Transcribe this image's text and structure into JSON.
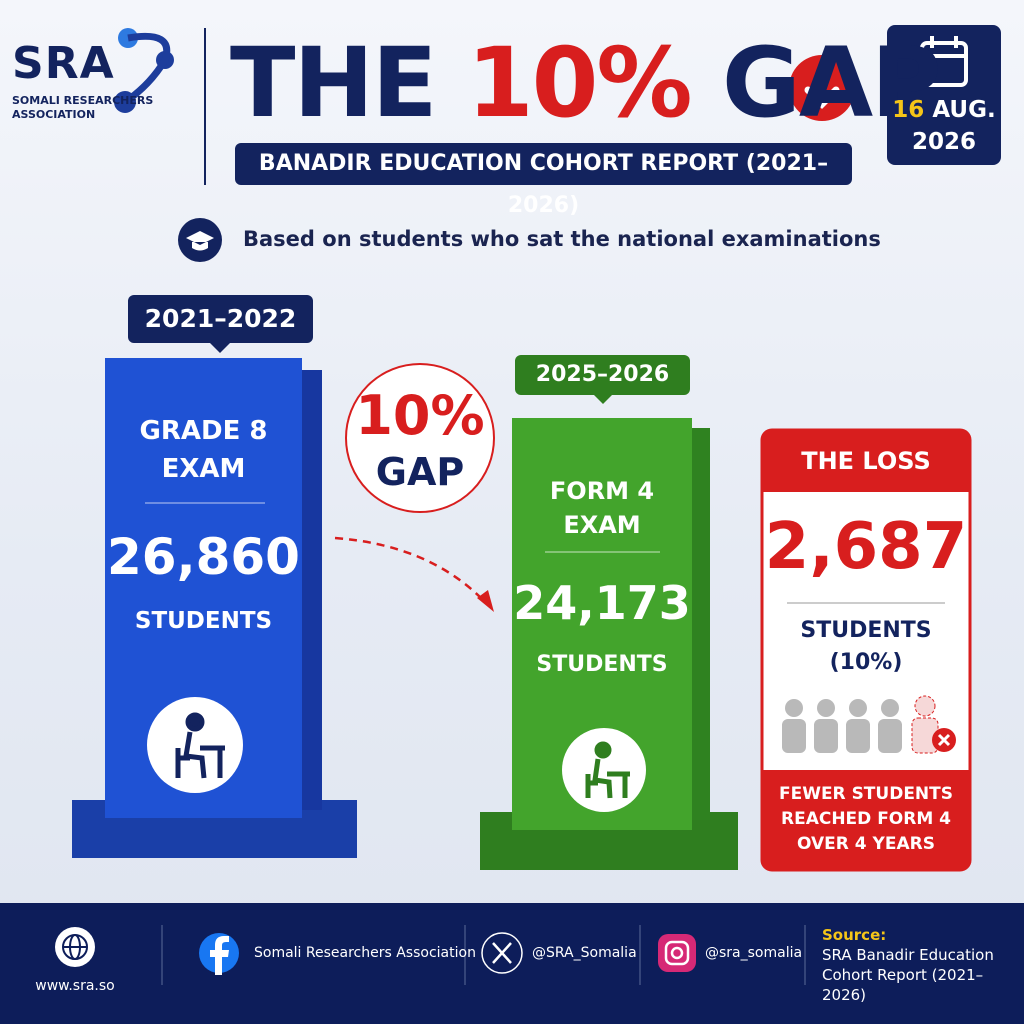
{
  "header": {
    "logo": {
      "mark": "SRA",
      "name_lines": [
        "SOMALI RESEARCHERS",
        "ASSOCIATION"
      ]
    },
    "title": {
      "before": "THE",
      "highlight": "10%",
      "after": "GAP"
    },
    "subtitle": "BANADIR EDUCATION COHORT REPORT (2021–2026)",
    "date": {
      "day": "16",
      "month": "AUG.",
      "year": "2026"
    }
  },
  "note": "Based on students who sat the national examinations",
  "start": {
    "period": "2021–2022",
    "exam_lines": [
      "GRADE 8",
      "EXAM"
    ],
    "count": "26,860",
    "unit": "STUDENTS"
  },
  "gap": {
    "percent": "10%",
    "label": "GAP"
  },
  "end": {
    "period": "2025–2026",
    "exam_lines": [
      "FORM 4",
      "EXAM"
    ],
    "count": "24,173",
    "unit": "STUDENTS"
  },
  "loss": {
    "title": "THE LOSS",
    "count": "2,687",
    "unit": "STUDENTS",
    "share": "(10%)",
    "caption_lines": [
      "FEWER STUDENTS",
      "REACHED FORM 4",
      "OVER 4 YEARS"
    ]
  },
  "footer": {
    "website": "www.sra.so",
    "facebook": "Somali Researchers Association",
    "x": "@SRA_Somalia",
    "instagram": "@sra_somalia",
    "source_label": "Source:",
    "source_lines": [
      "SRA Banadir Education",
      "Cohort Report (2021–2026)"
    ]
  }
}
